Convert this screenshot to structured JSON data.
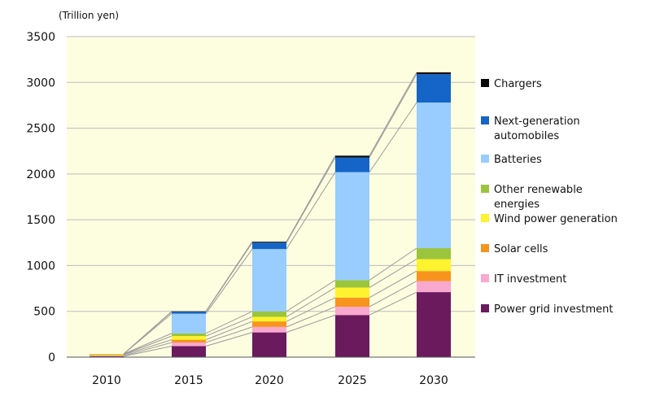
{
  "chart_data": {
    "type": "bar",
    "stacked": true,
    "unit_label": "(Trillion yen)",
    "categories": [
      "2010",
      "2015",
      "2020",
      "2025",
      "2030"
    ],
    "ylim": [
      0,
      3500
    ],
    "yticks": [
      0,
      500,
      1000,
      1500,
      2000,
      2500,
      3000,
      3500
    ],
    "grid": true,
    "plot_background": "#FDFDE0",
    "legend_position": "right",
    "series": [
      {
        "name": "Power grid investment",
        "color": "#6B1A5E",
        "values": [
          10,
          120,
          270,
          460,
          710
        ]
      },
      {
        "name": "IT investment",
        "color": "#F9A8CF",
        "values": [
          5,
          40,
          60,
          90,
          120
        ]
      },
      {
        "name": "Solar cells",
        "color": "#F7941D",
        "values": [
          10,
          30,
          60,
          100,
          110
        ]
      },
      {
        "name": "Wind power generation",
        "color": "#FFF22E",
        "values": [
          5,
          40,
          50,
          110,
          130
        ]
      },
      {
        "name": "Other renewable energies",
        "color": "#9BC53D",
        "values": [
          5,
          30,
          60,
          80,
          120
        ]
      },
      {
        "name": "Batteries",
        "color": "#99CCFF",
        "values": [
          0,
          215,
          680,
          1180,
          1590
        ]
      },
      {
        "name": "Next-generation automobiles",
        "color": "#1565C8",
        "values": [
          0,
          20,
          70,
          160,
          310
        ]
      },
      {
        "name": "Chargers",
        "color": "#0A0A0A",
        "values": [
          0,
          5,
          10,
          20,
          20
        ]
      }
    ]
  }
}
